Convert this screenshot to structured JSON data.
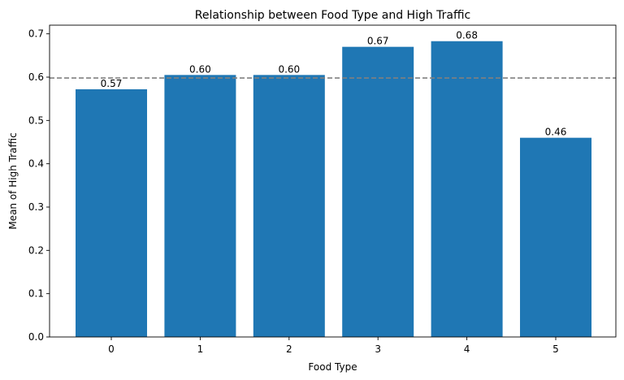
{
  "chart_data": {
    "type": "bar",
    "title": "Relationship between Food Type and High Traffic",
    "xlabel": "Food Type",
    "ylabel": "Mean of High Traffic",
    "categories": [
      "0",
      "1",
      "2",
      "3",
      "4",
      "5"
    ],
    "values": [
      0.572,
      0.605,
      0.605,
      0.67,
      0.683,
      0.46
    ],
    "data_labels": [
      "0.57",
      "0.60",
      "0.60",
      "0.67",
      "0.68",
      "0.46"
    ],
    "ylim": [
      0,
      0.72
    ],
    "yticks": [
      0.0,
      0.1,
      0.2,
      0.3,
      0.4,
      0.5,
      0.6,
      0.7
    ],
    "ytick_labels": [
      "0.0",
      "0.1",
      "0.2",
      "0.3",
      "0.4",
      "0.5",
      "0.6",
      "0.7"
    ],
    "reference_line": {
      "value": 0.598,
      "style": "dashed"
    },
    "bar_color": "#1f77b4",
    "reference_line_color": "#808080",
    "grid": false,
    "legend": "none"
  }
}
